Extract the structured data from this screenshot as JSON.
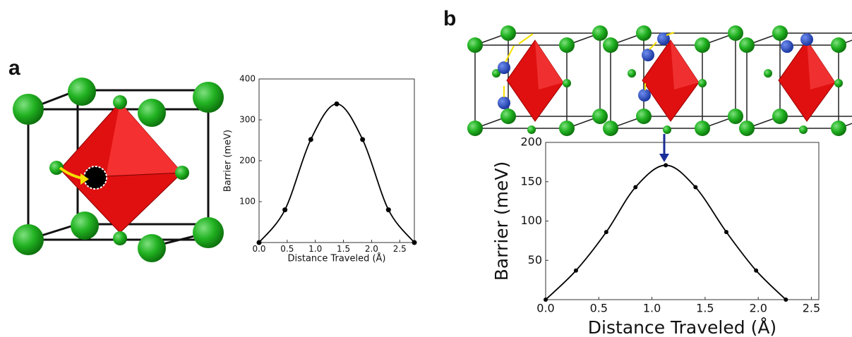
{
  "panel_labels": [
    "a",
    "b"
  ],
  "chart_data": [
    {
      "type": "line",
      "ylabel": "Barrier (meV)",
      "xlabel": "Distance Traveled  (Å)",
      "x": [
        0,
        0.46,
        0.92,
        1.38,
        1.84,
        2.3,
        2.76
      ],
      "values": [
        0,
        80,
        252,
        339,
        252,
        80,
        0
      ],
      "color": "#000000",
      "xlim": [
        0,
        2.76
      ],
      "ylim": [
        0,
        400
      ],
      "xticks": [
        {
          "value": 0,
          "label": "0.0"
        },
        {
          "value": 0.5,
          "label": "0.5"
        },
        {
          "value": 1,
          "label": "1.0"
        },
        {
          "value": 1.5,
          "label": "1.5"
        },
        {
          "value": 2,
          "label": "2.0"
        },
        {
          "value": 2.5,
          "label": "2.5"
        }
      ],
      "yticks": [
        100,
        200,
        300,
        400
      ]
    },
    {
      "type": "line",
      "ylabel": "Barrier (meV)",
      "xlabel": "Distance Traveled (Å)",
      "x": [
        0,
        0.285,
        0.57,
        0.845,
        1.13,
        1.41,
        1.7,
        1.98,
        2.26
      ],
      "values": [
        0,
        37,
        86,
        143,
        171,
        143,
        86,
        37,
        0
      ],
      "color": "#000000",
      "xlim": [
        0,
        2.57
      ],
      "ylim": [
        0,
        200
      ],
      "xticks": [
        {
          "value": 0,
          "label": "0.0"
        },
        {
          "value": 0.5,
          "label": "0.5"
        },
        {
          "value": 1,
          "label": "1.0"
        },
        {
          "value": 1.5,
          "label": "1.5"
        },
        {
          "value": 2,
          "label": "2.0"
        },
        {
          "value": 2.5,
          "label": "2.5"
        }
      ],
      "yticks": [
        50,
        100,
        150,
        200
      ]
    }
  ]
}
